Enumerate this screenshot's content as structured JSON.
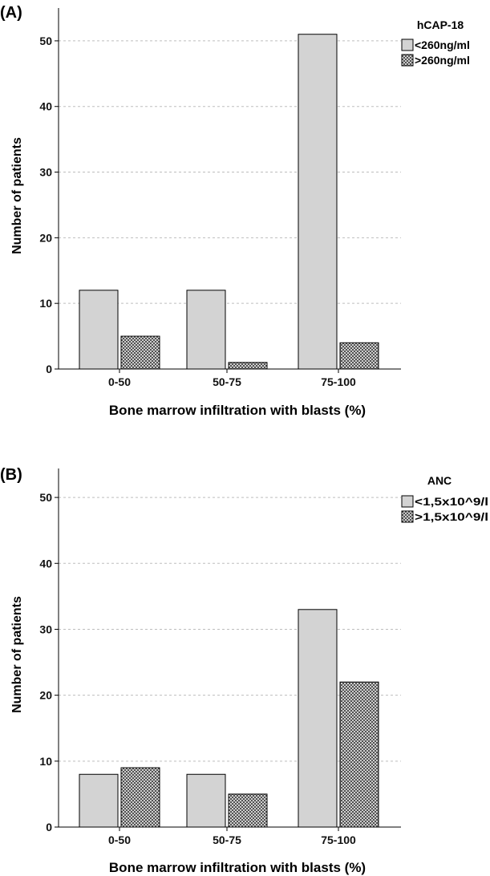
{
  "chart_data": [
    {
      "type": "bar",
      "panel_label": "(A)",
      "categories": [
        "0-50",
        "50-75",
        "75-100"
      ],
      "series": [
        {
          "name": "<260ng/ml",
          "values": [
            12,
            12,
            51
          ],
          "fill": "#d3d3d3",
          "pattern": "solid"
        },
        {
          "name": ">260ng/ml",
          "values": [
            5,
            1,
            4
          ],
          "fill": "#ffffff",
          "pattern": "crosshatch"
        }
      ],
      "legend_title": "hCAP-18",
      "legend_position": "top-right",
      "xlabel": "Bone marrow infiltration with blasts (%)",
      "ylabel": "Number of patients",
      "ylim": [
        0,
        55
      ],
      "yticks": [
        0,
        10,
        20,
        30,
        40,
        50
      ],
      "grid": "horizontal-dashed"
    },
    {
      "type": "bar",
      "panel_label": "(B)",
      "categories": [
        "0-50",
        "50-75",
        "75-100"
      ],
      "series": [
        {
          "name": "<1,5x10^9/l",
          "values": [
            8,
            8,
            33
          ],
          "fill": "#d3d3d3",
          "pattern": "solid"
        },
        {
          "name": ">1,5x10^9/l",
          "values": [
            9,
            5,
            22
          ],
          "fill": "#ffffff",
          "pattern": "crosshatch"
        }
      ],
      "legend_title": "ANC",
      "legend_position": "top-right",
      "xlabel": "Bone marrow infiltration with blasts (%)",
      "ylabel": "Number of patients",
      "ylim": [
        0,
        55
      ],
      "yticks": [
        0,
        10,
        20,
        30,
        40,
        50
      ],
      "grid": "horizontal-dashed"
    }
  ]
}
